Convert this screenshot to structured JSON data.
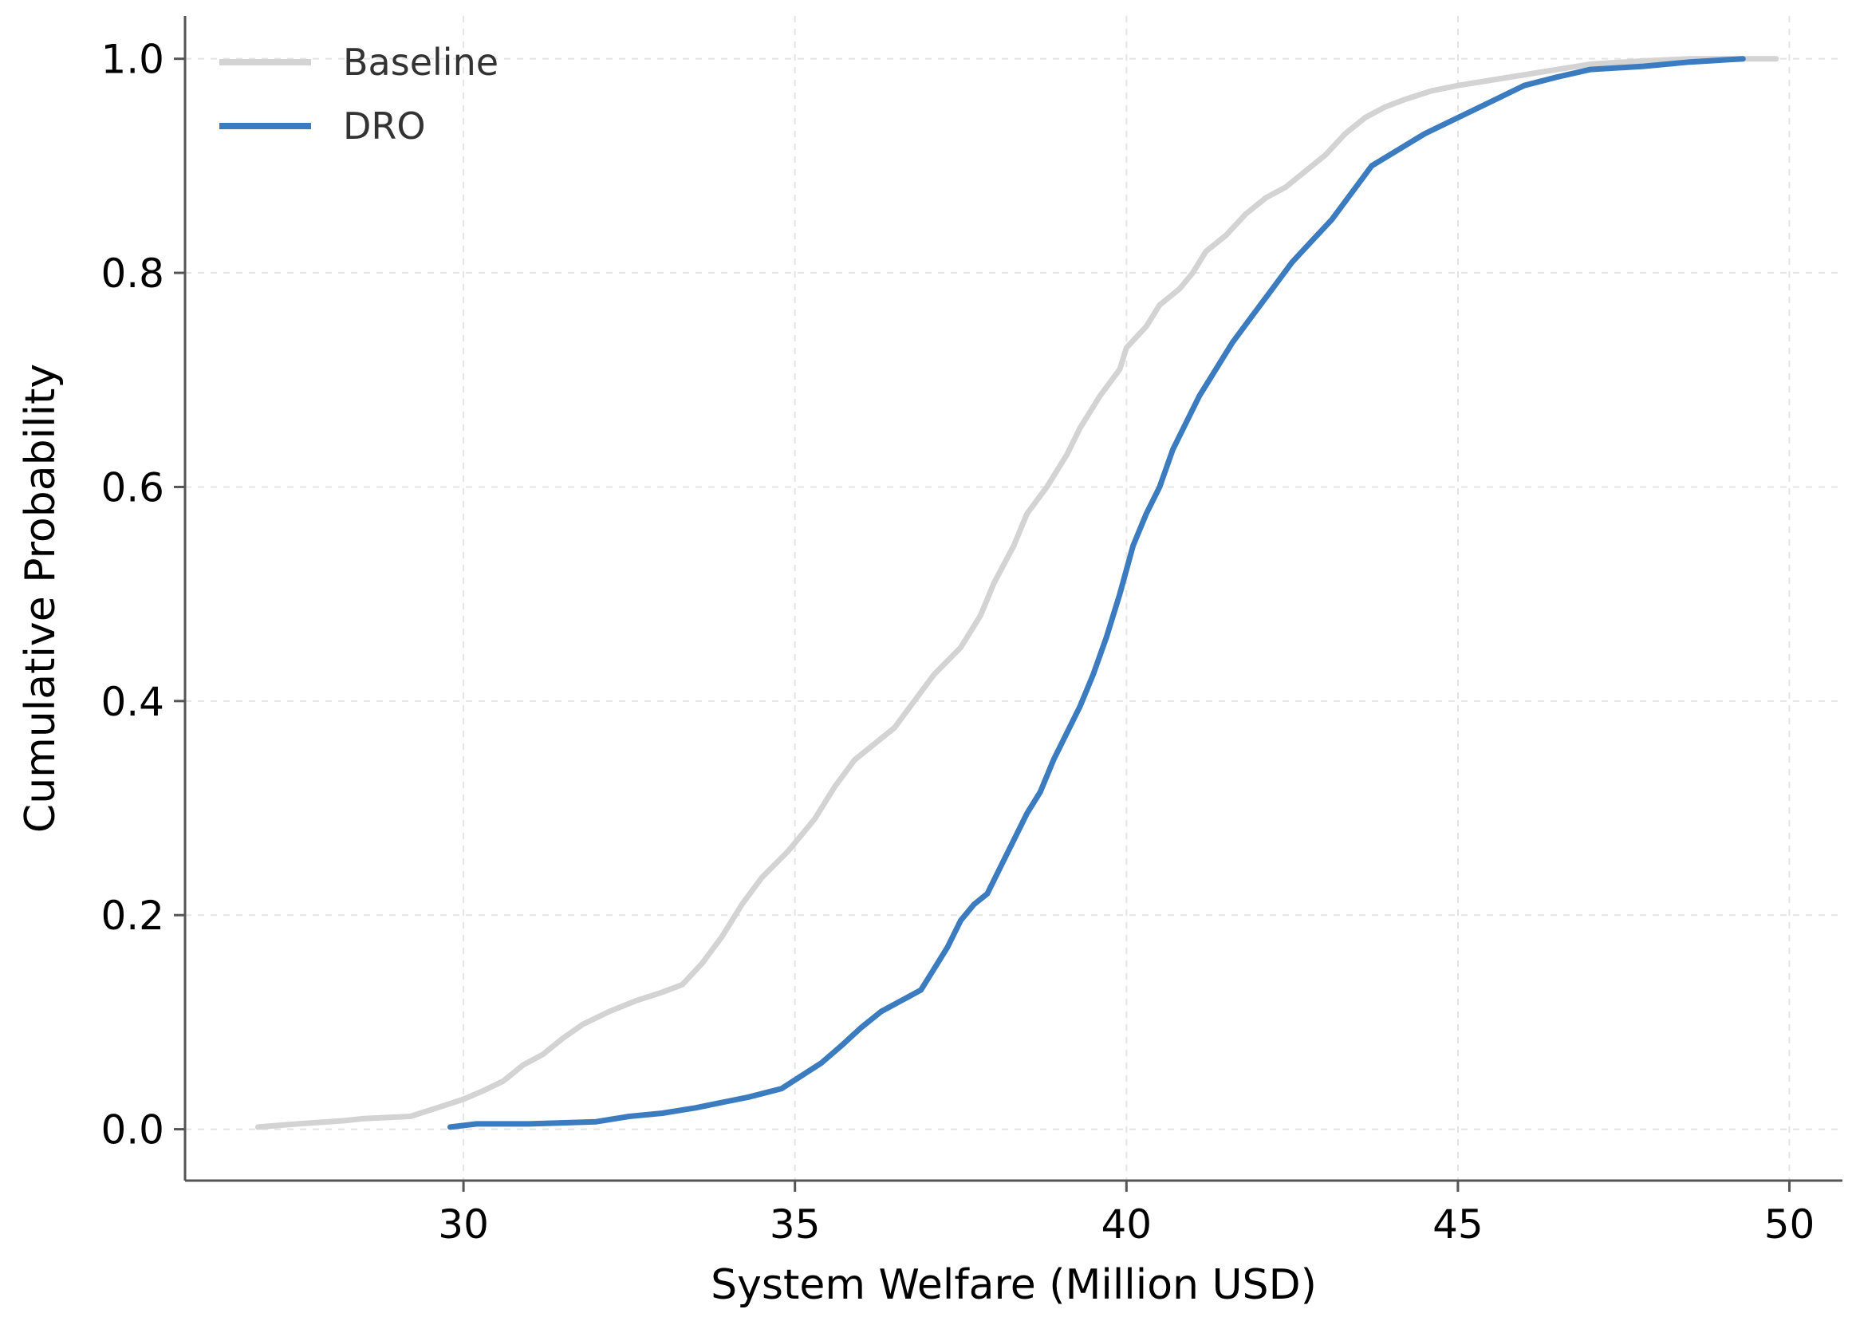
{
  "chart_data": {
    "type": "line",
    "title": "",
    "xlabel": "System Welfare (Million USD)",
    "ylabel": "Cumulative Probability",
    "xlim": [
      25.8,
      50.8
    ],
    "ylim": [
      -0.048,
      1.04
    ],
    "xticks": [
      30,
      35,
      40,
      45,
      50
    ],
    "xtick_labels": [
      "30",
      "35",
      "40",
      "45",
      "50"
    ],
    "yticks": [
      0.0,
      0.2,
      0.4,
      0.6,
      0.8,
      1.0
    ],
    "ytick_labels": [
      "0.0",
      "0.2",
      "0.4",
      "0.6",
      "0.8",
      "1.0"
    ],
    "grid": true,
    "legend_position": "top-left",
    "series": [
      {
        "name": "Baseline",
        "color": "#d3d3d3",
        "points": [
          [
            26.9,
            0.002
          ],
          [
            27.5,
            0.005
          ],
          [
            28.2,
            0.008
          ],
          [
            28.5,
            0.01
          ],
          [
            29.2,
            0.012
          ],
          [
            29.6,
            0.02
          ],
          [
            30.0,
            0.028
          ],
          [
            30.3,
            0.036
          ],
          [
            30.6,
            0.045
          ],
          [
            30.9,
            0.06
          ],
          [
            31.2,
            0.07
          ],
          [
            31.5,
            0.085
          ],
          [
            31.8,
            0.098
          ],
          [
            32.2,
            0.11
          ],
          [
            32.6,
            0.12
          ],
          [
            33.0,
            0.128
          ],
          [
            33.3,
            0.135
          ],
          [
            33.6,
            0.155
          ],
          [
            33.9,
            0.18
          ],
          [
            34.2,
            0.21
          ],
          [
            34.5,
            0.235
          ],
          [
            34.9,
            0.26
          ],
          [
            35.3,
            0.29
          ],
          [
            35.6,
            0.32
          ],
          [
            35.9,
            0.345
          ],
          [
            36.2,
            0.36
          ],
          [
            36.5,
            0.375
          ],
          [
            36.8,
            0.4
          ],
          [
            37.1,
            0.425
          ],
          [
            37.5,
            0.45
          ],
          [
            37.8,
            0.48
          ],
          [
            38.0,
            0.51
          ],
          [
            38.3,
            0.545
          ],
          [
            38.5,
            0.575
          ],
          [
            38.8,
            0.6
          ],
          [
            39.1,
            0.63
          ],
          [
            39.3,
            0.655
          ],
          [
            39.6,
            0.685
          ],
          [
            39.9,
            0.71
          ],
          [
            40.0,
            0.73
          ],
          [
            40.3,
            0.75
          ],
          [
            40.5,
            0.77
          ],
          [
            40.8,
            0.785
          ],
          [
            41.0,
            0.8
          ],
          [
            41.2,
            0.82
          ],
          [
            41.5,
            0.835
          ],
          [
            41.8,
            0.855
          ],
          [
            42.1,
            0.87
          ],
          [
            42.4,
            0.88
          ],
          [
            42.8,
            0.9
          ],
          [
            43.0,
            0.91
          ],
          [
            43.3,
            0.93
          ],
          [
            43.6,
            0.945
          ],
          [
            43.9,
            0.955
          ],
          [
            44.2,
            0.962
          ],
          [
            44.6,
            0.97
          ],
          [
            45.0,
            0.975
          ],
          [
            45.5,
            0.98
          ],
          [
            46.0,
            0.985
          ],
          [
            46.5,
            0.99
          ],
          [
            47.0,
            0.995
          ],
          [
            47.8,
            0.998
          ],
          [
            48.5,
            1.0
          ],
          [
            49.8,
            1.0
          ]
        ]
      },
      {
        "name": "DRO",
        "color": "#3b7bbf",
        "points": [
          [
            29.8,
            0.002
          ],
          [
            30.2,
            0.005
          ],
          [
            31.0,
            0.005
          ],
          [
            32.0,
            0.007
          ],
          [
            32.5,
            0.012
          ],
          [
            33.0,
            0.015
          ],
          [
            33.5,
            0.02
          ],
          [
            33.9,
            0.025
          ],
          [
            34.3,
            0.03
          ],
          [
            34.8,
            0.038
          ],
          [
            35.1,
            0.05
          ],
          [
            35.4,
            0.062
          ],
          [
            35.7,
            0.078
          ],
          [
            36.0,
            0.095
          ],
          [
            36.3,
            0.11
          ],
          [
            36.6,
            0.12
          ],
          [
            36.9,
            0.13
          ],
          [
            37.1,
            0.15
          ],
          [
            37.3,
            0.17
          ],
          [
            37.5,
            0.195
          ],
          [
            37.7,
            0.21
          ],
          [
            37.9,
            0.22
          ],
          [
            38.1,
            0.245
          ],
          [
            38.3,
            0.27
          ],
          [
            38.5,
            0.295
          ],
          [
            38.7,
            0.315
          ],
          [
            38.9,
            0.345
          ],
          [
            39.1,
            0.37
          ],
          [
            39.3,
            0.395
          ],
          [
            39.5,
            0.425
          ],
          [
            39.7,
            0.46
          ],
          [
            39.9,
            0.5
          ],
          [
            40.1,
            0.545
          ],
          [
            40.3,
            0.575
          ],
          [
            40.5,
            0.6
          ],
          [
            40.7,
            0.635
          ],
          [
            40.9,
            0.66
          ],
          [
            41.1,
            0.685
          ],
          [
            41.3,
            0.705
          ],
          [
            41.6,
            0.735
          ],
          [
            41.9,
            0.76
          ],
          [
            42.2,
            0.785
          ],
          [
            42.5,
            0.81
          ],
          [
            42.8,
            0.83
          ],
          [
            43.1,
            0.85
          ],
          [
            43.4,
            0.875
          ],
          [
            43.7,
            0.9
          ],
          [
            44.1,
            0.915
          ],
          [
            44.5,
            0.93
          ],
          [
            45.0,
            0.945
          ],
          [
            45.5,
            0.96
          ],
          [
            46.0,
            0.975
          ],
          [
            46.5,
            0.983
          ],
          [
            47.0,
            0.99
          ],
          [
            47.8,
            0.993
          ],
          [
            48.5,
            0.997
          ],
          [
            49.3,
            1.0
          ]
        ]
      }
    ]
  }
}
